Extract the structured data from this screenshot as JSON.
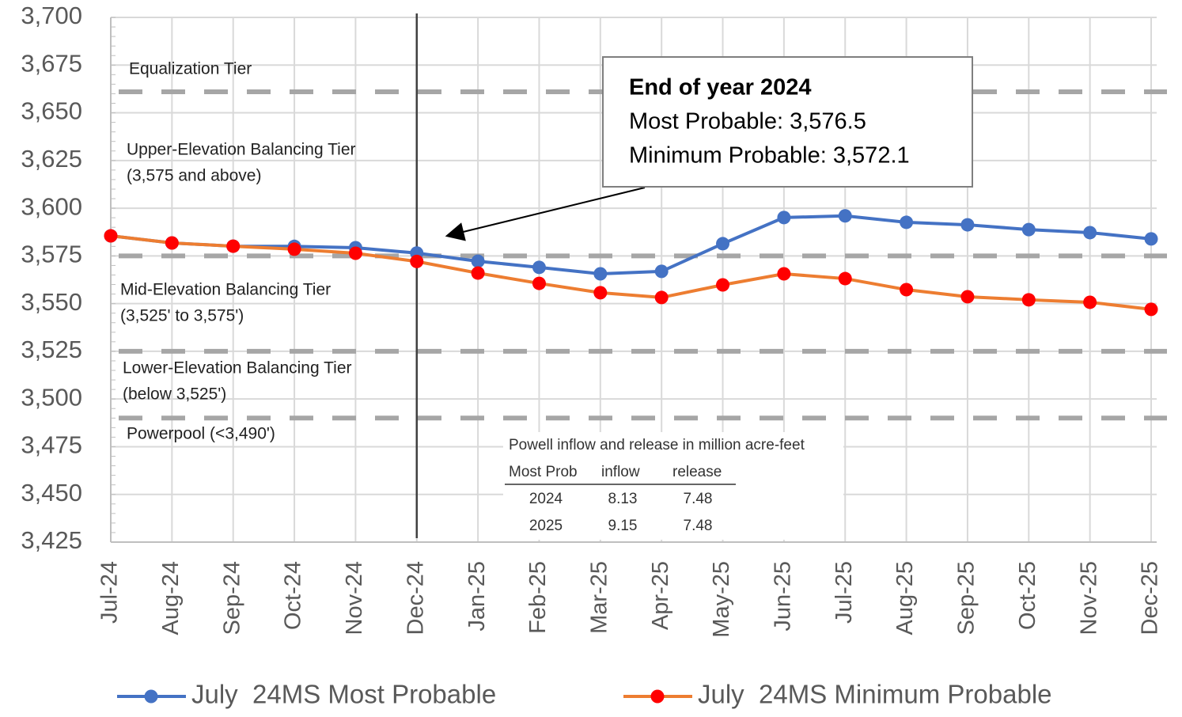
{
  "chart_data": {
    "type": "line",
    "categories": [
      "Jul-24",
      "Aug-24",
      "Sep-24",
      "Oct-24",
      "Nov-24",
      "Dec-24",
      "Jan-25",
      "Feb-25",
      "Mar-25",
      "Apr-25",
      "May-25",
      "Jun-25",
      "Jul-25",
      "Aug-25",
      "Sep-25",
      "Oct-25",
      "Nov-25",
      "Dec-25"
    ],
    "series": [
      {
        "name": "July  24MS Most Probable",
        "color": "#4472c4",
        "values": [
          3585.5,
          3581.8,
          3580.1,
          3580,
          3579.3,
          3576.5,
          3572.2,
          3569,
          3565.6,
          3566.9,
          3581.4,
          3595.1,
          3596,
          3592.6,
          3591.3,
          3588.8,
          3587.2,
          3583.9
        ]
      },
      {
        "name": "July  24MS Minimum Probable",
        "color": "#ed7d31",
        "marker_color": "#ff0000",
        "values": [
          3585.5,
          3581.8,
          3580.1,
          3578.5,
          3576.4,
          3572.1,
          3566,
          3560.6,
          3555.7,
          3553.2,
          3559.8,
          3565.6,
          3563.1,
          3557.3,
          3553.6,
          3552,
          3550.7,
          3547
        ]
      }
    ],
    "ylim": [
      3425,
      3700
    ],
    "yticks": [
      {
        "value": 3425,
        "label": "3,425"
      },
      {
        "value": 3450,
        "label": "3,450"
      },
      {
        "value": 3475,
        "label": "3,475"
      },
      {
        "value": 3500,
        "label": "3,500"
      },
      {
        "value": 3525,
        "label": "3,525"
      },
      {
        "value": 3550,
        "label": "3,550"
      },
      {
        "value": 3575,
        "label": "3,575"
      },
      {
        "value": 3600,
        "label": "3,600"
      },
      {
        "value": 3625,
        "label": "3,625"
      },
      {
        "value": 3650,
        "label": "3,650"
      },
      {
        "value": 3675,
        "label": "3,675"
      },
      {
        "value": 3700,
        "label": "3,700"
      }
    ],
    "grid": true,
    "reference_lines": [
      3661,
      3575,
      3525,
      3490
    ],
    "tier_labels": [
      [
        "Equalization Tier"
      ],
      [
        "Upper-Elevation Balancing Tier",
        "(3,575 and above)"
      ],
      [
        "Mid-Elevation Balancing Tier",
        "(3,525' to 3,575')"
      ],
      [
        "Lower-Elevation Balancing Tier",
        "(below 3,525')"
      ],
      [
        "Powerpool (<3,490')"
      ]
    ],
    "vline_category": "Dec-24",
    "annotation": [
      "End of year 2024",
      "Most Probable: 3,576.5",
      "Minimum Probable: 3,572.1"
    ],
    "table": {
      "title": "Powell inflow and release in million acre-feet",
      "header": [
        "Most Prob",
        "inflow",
        "release"
      ],
      "rows": [
        [
          2024,
          8.13,
          7.48
        ],
        [
          2025,
          9.15,
          7.48
        ]
      ]
    },
    "legend": "bottom"
  }
}
